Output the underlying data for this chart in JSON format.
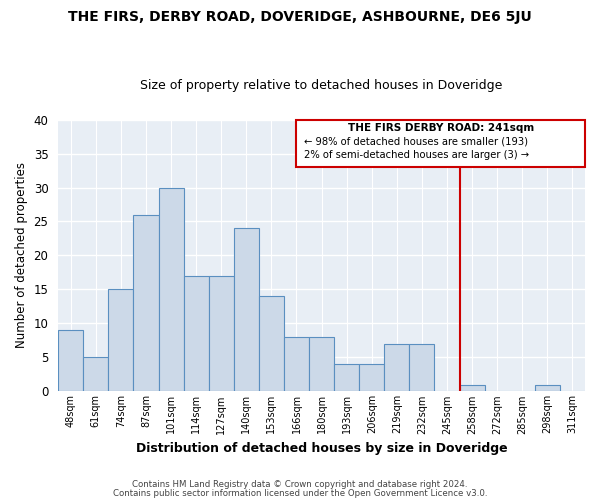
{
  "title": "THE FIRS, DERBY ROAD, DOVERIDGE, ASHBOURNE, DE6 5JU",
  "subtitle": "Size of property relative to detached houses in Doveridge",
  "xlabel": "Distribution of detached houses by size in Doveridge",
  "ylabel": "Number of detached properties",
  "footer1": "Contains HM Land Registry data © Crown copyright and database right 2024.",
  "footer2": "Contains public sector information licensed under the Open Government Licence v3.0.",
  "bin_labels": [
    "48sqm",
    "61sqm",
    "74sqm",
    "87sqm",
    "101sqm",
    "114sqm",
    "127sqm",
    "140sqm",
    "153sqm",
    "166sqm",
    "180sqm",
    "193sqm",
    "206sqm",
    "219sqm",
    "232sqm",
    "245sqm",
    "258sqm",
    "272sqm",
    "285sqm",
    "298sqm",
    "311sqm"
  ],
  "bar_heights": [
    9,
    5,
    15,
    26,
    30,
    17,
    17,
    24,
    14,
    8,
    8,
    4,
    4,
    7,
    7,
    0,
    1,
    0,
    0,
    1,
    0
  ],
  "bar_color": "#ccd9e8",
  "bar_edge_color": "#5a8fc0",
  "vline_x": 15.5,
  "vline_color": "#cc0000",
  "annotation_title": "THE FIRS DERBY ROAD: 241sqm",
  "annotation_line1": "← 98% of detached houses are smaller (193)",
  "annotation_line2": "2% of semi-detached houses are larger (3) →",
  "annotation_box_color": "#cc0000",
  "ylim": [
    0,
    40
  ],
  "yticks": [
    0,
    5,
    10,
    15,
    20,
    25,
    30,
    35,
    40
  ],
  "plot_bg_color": "#e8eef5",
  "fig_bg_color": "#ffffff",
  "grid_color": "#ffffff",
  "title_fontsize": 10,
  "subtitle_fontsize": 9
}
